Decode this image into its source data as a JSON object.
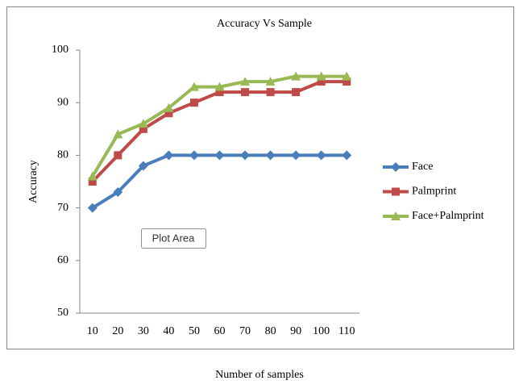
{
  "chart_data": {
    "type": "line",
    "title": "Accuracy Vs  Sample",
    "x_label": "Number of samples",
    "y_label": "Accuracy",
    "annotation": "Plot Area",
    "categories": [
      "10",
      "20",
      "30",
      "40",
      "50",
      "60",
      "70",
      "80",
      "90",
      "100",
      "110"
    ],
    "series": [
      {
        "name": "Face",
        "color": "#4a7ebb",
        "values": [
          70,
          73,
          78,
          80,
          80,
          80,
          80,
          80,
          80,
          80,
          80
        ]
      },
      {
        "name": "Palmprint",
        "color": "#be4b48",
        "values": [
          75,
          80,
          85,
          88,
          90,
          92,
          92,
          92,
          92,
          94,
          94
        ]
      },
      {
        "name": "Face+Palmprint",
        "color": "#98b954",
        "values": [
          76,
          84,
          86,
          89,
          93,
          93,
          94,
          94,
          95,
          95,
          95
        ]
      }
    ],
    "ylim": [
      50,
      100
    ],
    "yticks": [
      50,
      60,
      70,
      80,
      90,
      100
    ],
    "grid": false,
    "legend": "right"
  }
}
